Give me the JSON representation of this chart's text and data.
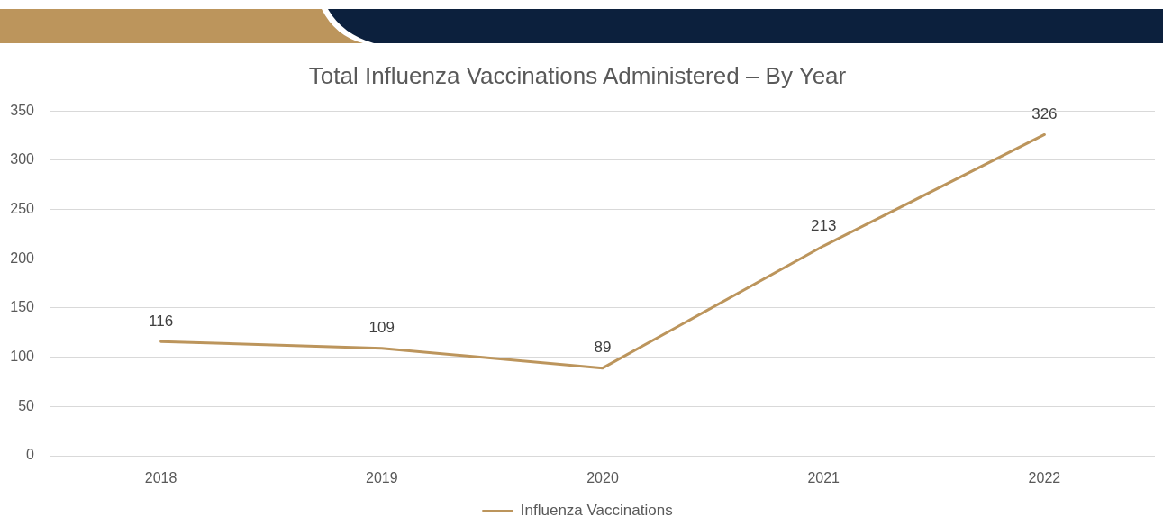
{
  "chart_data": {
    "type": "line",
    "title": "Total Influenza Vaccinations Administered – By Year",
    "categories": [
      "2018",
      "2019",
      "2020",
      "2021",
      "2022"
    ],
    "series": [
      {
        "name": "Influenza Vaccinations",
        "color": "#bc955c",
        "values": [
          116,
          109,
          89,
          213,
          326
        ]
      }
    ],
    "ylim": [
      0,
      350
    ],
    "yticks": [
      0,
      50,
      100,
      150,
      200,
      250,
      300,
      350
    ],
    "grid": "y",
    "legend": "bottom",
    "marker": "none",
    "line_style": "solid",
    "data_labels": true
  }
}
